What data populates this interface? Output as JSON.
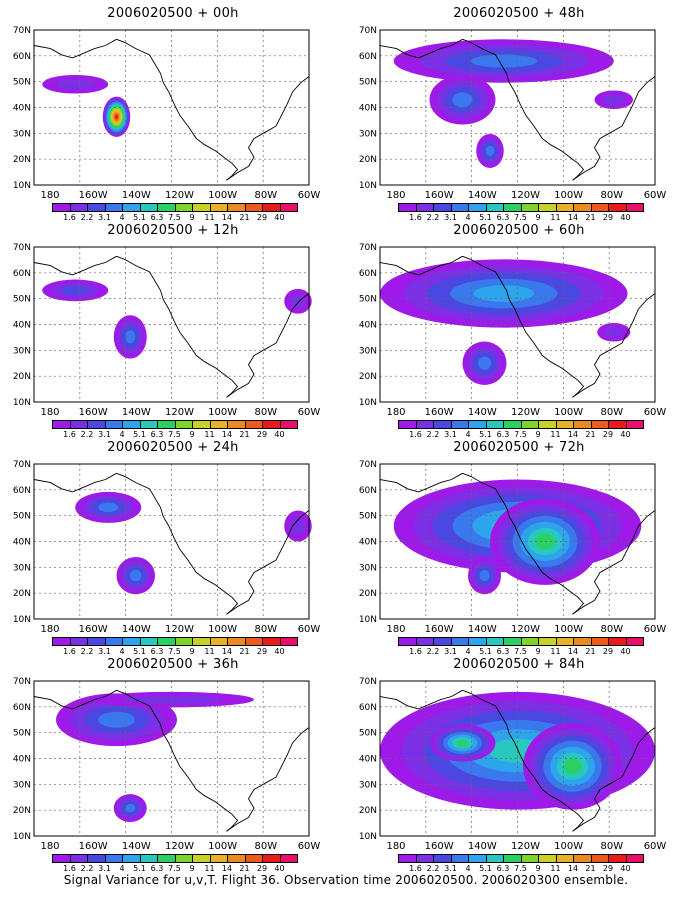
{
  "colors": {
    "scale": [
      "#9d1ae8",
      "#7b30e6",
      "#4a48e0",
      "#3a78ee",
      "#2ea4ec",
      "#28c8c0",
      "#2ad060",
      "#7cd42c",
      "#c8d02a",
      "#e8b228",
      "#ec8a22",
      "#ec5a1e",
      "#e81a1a",
      "#e8106a"
    ]
  },
  "colorbar_labels": [
    "1.6",
    "2.2",
    "3.1",
    "4",
    "5.1",
    "6.3",
    "7.5",
    "9",
    "11",
    "14",
    "21",
    "29",
    "40"
  ],
  "lat_labels": [
    "70N",
    "60N",
    "50N",
    "40N",
    "30N",
    "20N",
    "10N"
  ],
  "lon_labels": [
    "180",
    "160W",
    "140W",
    "120W",
    "100W",
    "80W",
    "60W"
  ],
  "panels": [
    {
      "title": "2006020500 + 00h",
      "intensity": 0
    },
    {
      "title": "2006020500 + 48h",
      "intensity": 4
    },
    {
      "title": "2006020500 + 12h",
      "intensity": 1
    },
    {
      "title": "2006020500 + 60h",
      "intensity": 5
    },
    {
      "title": "2006020500 + 24h",
      "intensity": 2
    },
    {
      "title": "2006020500 + 72h",
      "intensity": 6
    },
    {
      "title": "2006020500 + 36h",
      "intensity": 3
    },
    {
      "title": "2006020500 + 84h",
      "intensity": 7
    }
  ],
  "footer": "Signal Variance for u,v,T. Flight 36. Observation time 2006020500. 2006020300 ensemble."
}
